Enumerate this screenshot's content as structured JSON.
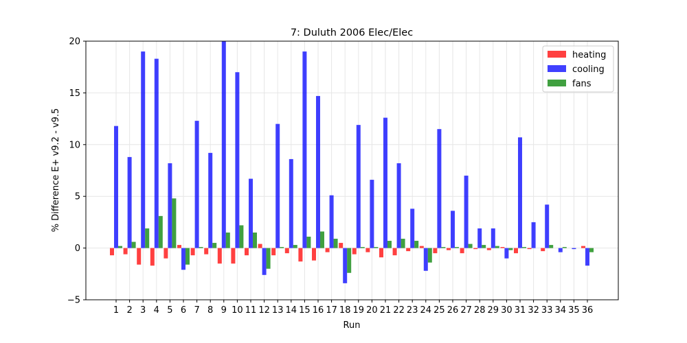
{
  "chart_data": {
    "type": "bar",
    "title": "7: Duluth 2006 Elec/Elec",
    "xlabel": "Run",
    "ylabel": "% Difference E+ v9.2 - v9.5",
    "ylim": [
      -5,
      20
    ],
    "yticks": [
      -5,
      0,
      5,
      10,
      15,
      20
    ],
    "yticklabels": [
      "−5",
      "0",
      "5",
      "10",
      "15",
      "20"
    ],
    "grid": true,
    "legend_position": "top-right",
    "categories": [
      "1",
      "2",
      "3",
      "4",
      "5",
      "6",
      "7",
      "8",
      "9",
      "10",
      "11",
      "12",
      "13",
      "14",
      "15",
      "16",
      "17",
      "18",
      "19",
      "20",
      "21",
      "22",
      "23",
      "24",
      "25",
      "26",
      "27",
      "28",
      "29",
      "30",
      "31",
      "32",
      "33",
      "34",
      "35",
      "36"
    ],
    "series": [
      {
        "name": "heating",
        "color": "#ff0000",
        "values": [
          -0.7,
          -0.6,
          -1.6,
          -1.7,
          -1.0,
          0.3,
          -0.7,
          -0.6,
          -1.5,
          -1.5,
          -0.7,
          0.4,
          -0.7,
          -0.5,
          -1.3,
          -1.2,
          -0.4,
          0.5,
          -0.6,
          -0.4,
          -0.9,
          -0.7,
          -0.3,
          0.2,
          -0.5,
          -0.2,
          -0.5,
          -0.1,
          -0.2,
          0.1,
          -0.5,
          -0.1,
          -0.3,
          0.0,
          0.0,
          0.2
        ]
      },
      {
        "name": "cooling",
        "color": "#0000ff",
        "values": [
          11.8,
          8.8,
          19.0,
          18.3,
          8.2,
          -2.1,
          12.3,
          9.2,
          20.0,
          17.0,
          6.7,
          -2.6,
          12.0,
          8.6,
          19.0,
          14.7,
          5.1,
          -3.4,
          11.9,
          6.6,
          12.6,
          8.2,
          3.8,
          -2.2,
          11.5,
          3.6,
          7.0,
          1.9,
          1.9,
          -1.0,
          10.7,
          2.5,
          4.2,
          -0.4,
          -0.1,
          -1.7
        ]
      },
      {
        "name": "fans",
        "color": "#008000",
        "values": [
          0.2,
          0.6,
          1.9,
          3.1,
          4.8,
          -1.6,
          0.1,
          0.5,
          1.5,
          2.2,
          1.5,
          -2.0,
          0.1,
          0.3,
          1.1,
          1.6,
          0.9,
          -2.4,
          0.1,
          0.1,
          0.7,
          0.9,
          0.7,
          -1.4,
          0.1,
          0.1,
          0.4,
          0.3,
          0.2,
          -0.2,
          0.1,
          0.0,
          0.3,
          0.1,
          0.0,
          -0.4
        ]
      }
    ]
  }
}
